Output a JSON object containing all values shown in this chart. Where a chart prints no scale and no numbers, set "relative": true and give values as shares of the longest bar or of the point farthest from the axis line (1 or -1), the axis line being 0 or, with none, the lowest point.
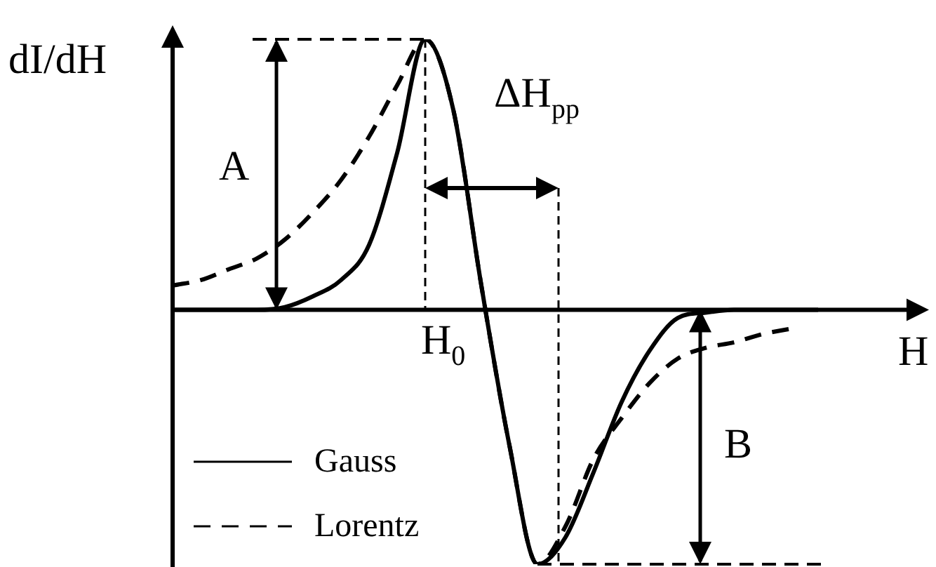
{
  "chart_data": {
    "type": "line",
    "relative": true,
    "xlabel": "H",
    "ylabel": "dI/dH",
    "legend": "bottom left",
    "marker": "none",
    "categories": [
      null,
      null,
      null,
      null,
      null,
      null,
      null,
      null,
      null,
      null,
      null,
      null,
      null,
      null,
      null,
      null,
      null,
      null,
      null,
      null,
      null,
      null,
      null,
      null
    ],
    "series": [
      {
        "name": "Gauss",
        "color": "#000000",
        "line_style": "solid",
        "values": [
          0,
          0,
          0,
          0,
          0.01,
          0.05,
          0.11,
          0.24,
          0.58,
          1,
          0.74,
          0.09,
          -0.5,
          -0.94,
          -0.84,
          -0.6,
          -0.34,
          -0.15,
          -0.03,
          -0.01,
          0,
          0,
          0,
          0
        ]
      },
      {
        "name": "Lorentz",
        "color": "#000000",
        "line_style": "dashed",
        "values": [
          0.09,
          0.11,
          0.15,
          0.19,
          0.26,
          0.36,
          0.48,
          0.64,
          0.83,
          1,
          0.74,
          0.09,
          -0.5,
          -0.94,
          -0.8,
          -0.55,
          -0.4,
          -0.27,
          -0.18,
          -0.14,
          -0.12,
          -0.09,
          -0.07,
          null
        ]
      }
    ],
    "annotations": [
      "A",
      "ΔH$_{pp}$",
      "H$_{0}$",
      "B"
    ]
  }
}
